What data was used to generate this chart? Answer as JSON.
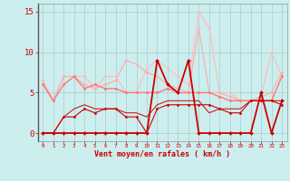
{
  "x": [
    0,
    1,
    2,
    3,
    4,
    5,
    6,
    7,
    8,
    9,
    10,
    11,
    12,
    13,
    14,
    15,
    16,
    17,
    18,
    19,
    20,
    21,
    22,
    23
  ],
  "background_color": "#cceeee",
  "grid_color": "#aacccc",
  "xlabel": "Vent moyen/en rafales ( km/h )",
  "xlabel_color": "#cc0000",
  "ylim": [
    -1,
    16
  ],
  "xlim": [
    -0.5,
    23.5
  ],
  "yticks": [
    0,
    5,
    10,
    15
  ],
  "series": [
    {
      "y": [
        6,
        4,
        7,
        7,
        7,
        5.5,
        7,
        7,
        5,
        5,
        8,
        9,
        8,
        7,
        6,
        15,
        13,
        5,
        5,
        4,
        4,
        4.5,
        10,
        7
      ],
      "color": "#ffbbbb",
      "lw": 0.8,
      "marker": "o",
      "ms": 1.5
    },
    {
      "y": [
        6.5,
        4,
        7,
        7,
        6,
        5.5,
        6,
        6.5,
        9,
        8.5,
        7.5,
        7,
        6,
        5.5,
        5,
        13,
        5,
        5,
        4.5,
        4,
        4,
        4.5,
        5,
        7.5
      ],
      "color": "#ffaaaa",
      "lw": 0.8,
      "marker": "o",
      "ms": 1.5
    },
    {
      "y": [
        6,
        4,
        6,
        7,
        5.5,
        6,
        5.5,
        5.5,
        5,
        5,
        5,
        5,
        5.5,
        5,
        5,
        5,
        5,
        4.5,
        4,
        4,
        4,
        4,
        4,
        7
      ],
      "color": "#ff7777",
      "lw": 1.0,
      "marker": "o",
      "ms": 1.8
    },
    {
      "y": [
        0,
        0,
        2,
        3,
        3.5,
        3,
        3,
        3,
        2.5,
        2.5,
        2,
        3.5,
        4,
        4,
        4,
        4,
        2.5,
        3,
        3,
        3,
        4,
        4,
        4,
        4
      ],
      "color": "#cc0000",
      "lw": 0.7,
      "marker": null,
      "ms": 0
    },
    {
      "y": [
        0,
        0,
        2,
        2,
        3,
        2.5,
        3,
        3,
        2,
        2,
        0,
        3,
        3.5,
        3.5,
        3.5,
        3.5,
        3.5,
        3,
        2.5,
        2.5,
        4,
        4,
        4,
        3.5
      ],
      "color": "#cc0000",
      "lw": 0.8,
      "marker": "D",
      "ms": 1.5
    },
    {
      "y": [
        0,
        0,
        0,
        0,
        0,
        0,
        0,
        0,
        0,
        0,
        0,
        9,
        6,
        5,
        9,
        0,
        0,
        0,
        0,
        0,
        0,
        5,
        0,
        4
      ],
      "color": "#cc0000",
      "lw": 1.3,
      "marker": "D",
      "ms": 2.0
    }
  ]
}
